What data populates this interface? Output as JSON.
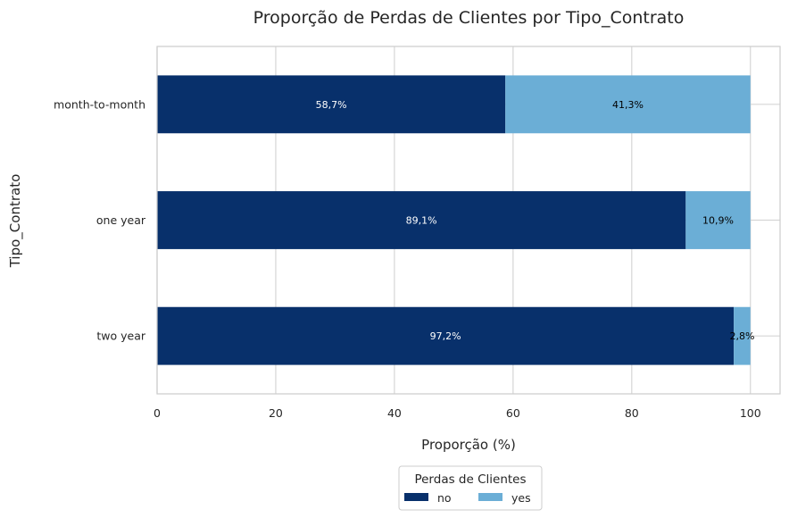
{
  "chart_data": {
    "type": "bar",
    "orientation": "horizontal",
    "stacked": true,
    "title": "Proporção de Perdas de Clientes por Tipo_Contrato",
    "xlabel": "Proporção (%)",
    "ylabel": "Tipo_Contrato",
    "xlim": [
      0,
      105
    ],
    "xticks": [
      "0",
      "20",
      "40",
      "60",
      "80",
      "100"
    ],
    "grid": true,
    "categories": [
      "month-to-month",
      "one year",
      "two year"
    ],
    "series": [
      {
        "name": "no",
        "color": "#08306b",
        "label_color": "#ffffff",
        "values": [
          58.7,
          89.1,
          97.2
        ],
        "labels": [
          "58,7%",
          "89,1%",
          "97,2%"
        ]
      },
      {
        "name": "yes",
        "color": "#6baed6",
        "label_color": "#000000",
        "values": [
          41.3,
          10.9,
          2.8
        ],
        "labels": [
          "41,3%",
          "10,9%",
          "2,8%"
        ]
      }
    ],
    "legend": {
      "title": "Perdas de Clientes",
      "placement": "bottom-center"
    }
  }
}
